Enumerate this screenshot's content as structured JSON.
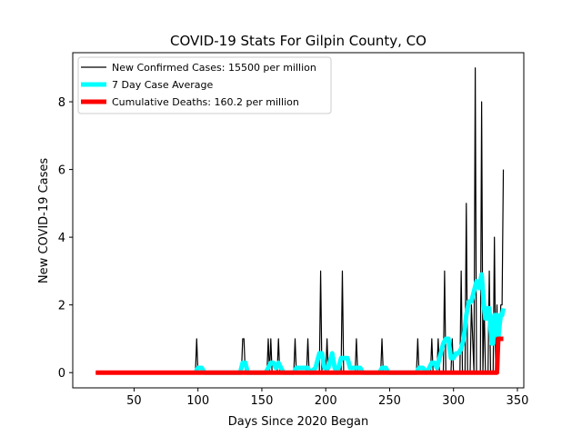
{
  "chart_data": {
    "type": "line",
    "title": "COVID-19 Stats For Gilpin County, CO",
    "xlabel": "Days Since 2020 Began",
    "ylabel": "New COVID-19 Cases",
    "xlim": [
      2,
      355
    ],
    "ylim": [
      -0.45,
      9.45
    ],
    "xticks": [
      50,
      100,
      150,
      200,
      250,
      300,
      350
    ],
    "yticks": [
      0,
      2,
      4,
      6,
      8
    ],
    "grid": false,
    "legend_position": "top-left",
    "series": [
      {
        "name": "New Confirmed Cases: 15500 per million",
        "color": "#000000",
        "x": [
          20,
          98,
          99,
          100,
          134,
          135,
          136,
          137,
          154,
          155,
          156,
          157,
          158,
          159,
          162,
          163,
          164,
          175,
          176,
          177,
          185,
          186,
          187,
          195,
          196,
          197,
          200,
          201,
          202,
          212,
          213,
          214,
          223,
          224,
          225,
          243,
          244,
          245,
          271,
          272,
          273,
          282,
          283,
          284,
          287,
          288,
          289,
          292,
          293,
          294,
          298,
          299,
          300,
          305,
          306,
          307,
          309,
          310,
          311,
          313,
          314,
          316,
          317,
          318,
          321,
          322,
          323,
          324,
          325,
          327,
          328,
          329,
          331,
          332,
          333,
          334,
          335,
          336,
          337,
          338,
          339
        ],
        "y": [
          0,
          0,
          1,
          0,
          0,
          1,
          1,
          0,
          0,
          1,
          0,
          1,
          0,
          0,
          0,
          1,
          0,
          0,
          1,
          0,
          0,
          1,
          0,
          0,
          3,
          0,
          0,
          1,
          0,
          0,
          3,
          0,
          0,
          1,
          0,
          0,
          1,
          0,
          0,
          1,
          0,
          0,
          1,
          0,
          0,
          1,
          0,
          0,
          3,
          0,
          0,
          1,
          0,
          0,
          3,
          0,
          0,
          5,
          0,
          0,
          2,
          0,
          9,
          0,
          0,
          8,
          0,
          2,
          0,
          0,
          3,
          0,
          0,
          4,
          0,
          2,
          0,
          1,
          2,
          2,
          6
        ]
      },
      {
        "name": "7 Day Case Average",
        "color": "#00ffff",
        "x": [
          98,
          100,
          103,
          105,
          133,
          135,
          137,
          139,
          153,
          155,
          157,
          159,
          161,
          163,
          165,
          167,
          175,
          177,
          180,
          183,
          186,
          188,
          192,
          195,
          197,
          199,
          202,
          205,
          207,
          209,
          212,
          214,
          217,
          219,
          222,
          224,
          227,
          229,
          242,
          244,
          247,
          249,
          271,
          273,
          276,
          279,
          281,
          283,
          285,
          287,
          290,
          292,
          294,
          296,
          298,
          300,
          302,
          304,
          306,
          308,
          310,
          312,
          314,
          316,
          318,
          320,
          322,
          324,
          325,
          326,
          327,
          328,
          329,
          330,
          331,
          332,
          333,
          334,
          335,
          336,
          337,
          338,
          339
        ],
        "y": [
          0,
          0.14,
          0.14,
          0,
          0,
          0.29,
          0.29,
          0,
          0,
          0.14,
          0.29,
          0.29,
          0.14,
          0.29,
          0.14,
          0,
          0,
          0.14,
          0.14,
          0.14,
          0.14,
          0,
          0.14,
          0.57,
          0.57,
          0.14,
          0.14,
          0.57,
          0.14,
          0,
          0.43,
          0.43,
          0.43,
          0.14,
          0.14,
          0.14,
          0.14,
          0,
          0,
          0.14,
          0.14,
          0,
          0,
          0.14,
          0.14,
          0,
          0.14,
          0.29,
          0.29,
          0.14,
          0.57,
          0.86,
          1.0,
          1.0,
          0.43,
          0.43,
          0.57,
          0.57,
          0.71,
          1.0,
          1.7,
          2.1,
          2.1,
          2.4,
          2.7,
          2.5,
          2.9,
          1.9,
          1.6,
          1.6,
          1.9,
          1.9,
          1.3,
          0.86,
          0.86,
          1.7,
          1.3,
          1.7,
          1.0,
          1.4,
          1.7,
          1.7,
          1.9
        ]
      },
      {
        "name": "Cumulative Deaths: 160.2 per million",
        "color": "#ff0000",
        "x": [
          20,
          334,
          335,
          336,
          339
        ],
        "y": [
          0,
          0,
          1,
          1,
          1
        ]
      }
    ]
  }
}
